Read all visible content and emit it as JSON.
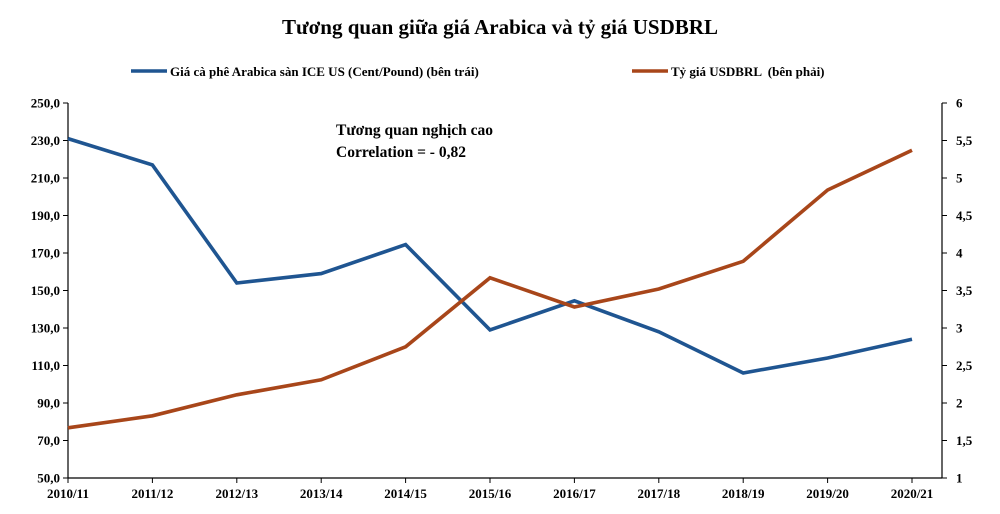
{
  "chart_data": {
    "type": "line",
    "title": "Tương quan giữa giá Arabica và tỷ giá USDBRL",
    "categories": [
      "2010/11",
      "2011/12",
      "2012/13",
      "2013/14",
      "2014/15",
      "2015/16",
      "2016/17",
      "2017/18",
      "2018/19",
      "2019/20",
      "2020/21"
    ],
    "series": [
      {
        "name": "Giá cà phê Arabica sàn ICE US (Cent/Pound) (bên trái)",
        "axis": "left",
        "color": "#1F5591",
        "values": [
          231,
          217,
          154,
          159,
          174.5,
          129,
          144.5,
          128,
          106,
          114,
          124
        ]
      },
      {
        "name": "Tỷ giá USDBRL  (bên phải)",
        "axis": "right",
        "color": "#A8461A",
        "values": [
          1.67,
          1.83,
          2.11,
          2.31,
          2.75,
          3.67,
          3.28,
          3.52,
          3.89,
          4.84,
          5.37
        ]
      }
    ],
    "y_left": {
      "min": 50,
      "max": 250,
      "step": 20,
      "ticks": [
        "50,0",
        "70,0",
        "90,0",
        "110,0",
        "130,0",
        "150,0",
        "170,0",
        "190,0",
        "210,0",
        "230,0",
        "250,0"
      ]
    },
    "y_right": {
      "min": 1,
      "max": 6,
      "step": 0.5,
      "ticks": [
        "1",
        "1,5",
        "2",
        "2,5",
        "3",
        "3,5",
        "4",
        "4,5",
        "5",
        "5,5",
        "6"
      ]
    },
    "annotation": {
      "line1": "Tương quan nghịch cao",
      "line2": "Correlation = - 0,82"
    },
    "legend_position": "top",
    "grid": false
  }
}
